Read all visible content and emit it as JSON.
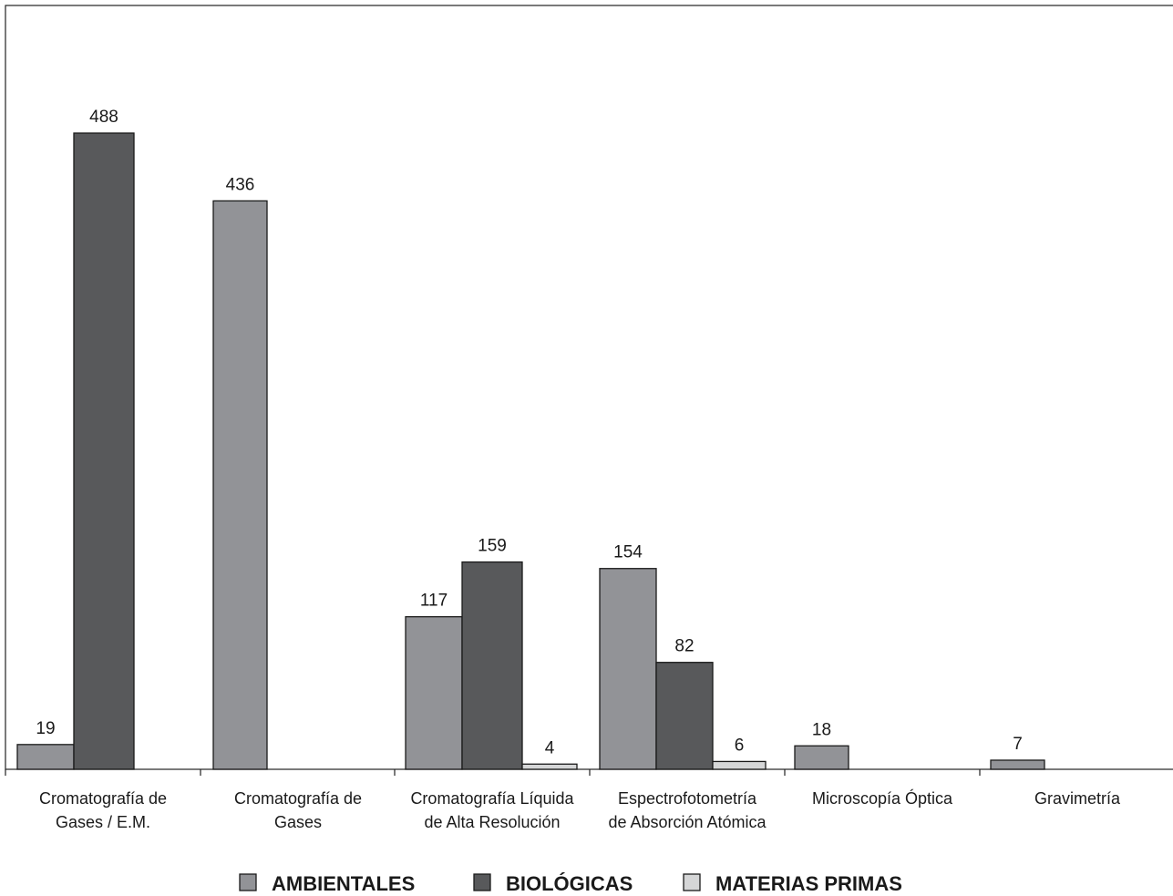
{
  "chart_data": {
    "type": "bar",
    "categories": [
      [
        "Cromatografía de",
        "Gases / E.M."
      ],
      [
        "Cromatografía de",
        "Gases"
      ],
      [
        "Cromatografía Líquida",
        "de Alta Resolución"
      ],
      [
        "Espectrofotometría",
        "de Absorción Atómica"
      ],
      [
        "Microscopía Óptica"
      ],
      [
        "Gravimetría"
      ]
    ],
    "series": [
      {
        "name": "AMBIENTALES",
        "color": "#929397",
        "values": [
          19,
          436,
          117,
          154,
          18,
          7
        ]
      },
      {
        "name": "BIOLÓGICAS",
        "color": "#58595b",
        "values": [
          488,
          null,
          159,
          82,
          null,
          null
        ]
      },
      {
        "name": "MATERIAS PRIMAS",
        "color": "#d5d6d7",
        "values": [
          null,
          null,
          4,
          6,
          null,
          null
        ]
      }
    ],
    "ylim": [
      0,
      580
    ],
    "grid": false,
    "legend_position": "bottom-center"
  }
}
